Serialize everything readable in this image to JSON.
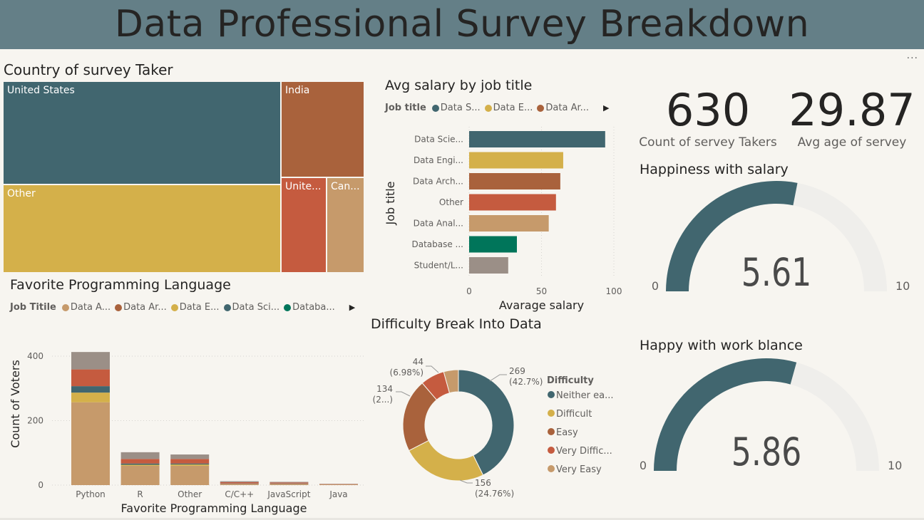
{
  "header": {
    "title": "Data Professional Survey Breakdown",
    "more_icon": "..."
  },
  "treemap": {
    "title": "Country of survey Taker",
    "items": [
      {
        "label": "United States",
        "color": "#41666f"
      },
      {
        "label": "Other",
        "color": "#d4b04a"
      },
      {
        "label": "India",
        "color": "#a9623c"
      },
      {
        "label": "Unite...",
        "color": "#c55b3f"
      },
      {
        "label": "Can...",
        "color": "#c69a6b"
      }
    ]
  },
  "salary_chart": {
    "title": "Avg salary by job title",
    "legend_label": "Job title",
    "legend_items": [
      {
        "label": "Data S...",
        "color": "#41666f"
      },
      {
        "label": "Data E...",
        "color": "#d4b04a"
      },
      {
        "label": "Data Ar...",
        "color": "#a9623c"
      }
    ],
    "xlabel": "Avarage salary",
    "ylabel": "Job title",
    "ticks": [
      "0",
      "50",
      "100"
    ]
  },
  "kpis": [
    {
      "value": "630",
      "label": "Count of servey Takers"
    },
    {
      "value": "29.87",
      "label": "Avg age of servey"
    }
  ],
  "gauges": [
    {
      "title": "Happiness with salary",
      "value": 5.61,
      "value_text": "5.61",
      "min_text": "0",
      "max_text": "10"
    },
    {
      "title": "Happy with work blance",
      "value": 5.86,
      "value_text": "5.86",
      "min_text": "0",
      "max_text": "10"
    }
  ],
  "lang_chart": {
    "title": "Favorite Programming Language",
    "legend_label": "Job Titile",
    "legend_items": [
      {
        "label": "Data A...",
        "color": "#c69a6b"
      },
      {
        "label": "Data Ar...",
        "color": "#a9623c"
      },
      {
        "label": "Data E...",
        "color": "#d4b04a"
      },
      {
        "label": "Data Sci...",
        "color": "#41666f"
      },
      {
        "label": "Databa...",
        "color": "#00755a"
      }
    ],
    "xlabel": "Favorite Programming Language",
    "ylabel": "Count of Voters",
    "ticks": [
      "0",
      "200",
      "400"
    ]
  },
  "donut_chart": {
    "title": "Difficulty Break Into Data",
    "legend_title": "Difficulty",
    "legend_items": [
      {
        "label": "Neither ea...",
        "color": "#41666f"
      },
      {
        "label": "Difficult",
        "color": "#d4b04a"
      },
      {
        "label": "Easy",
        "color": "#a9623c"
      },
      {
        "label": "Very Diffic...",
        "color": "#c55b3f"
      },
      {
        "label": "Very Easy",
        "color": "#c69a6b"
      }
    ],
    "data_labels": [
      {
        "line1": "269",
        "line2": "(42.7%)"
      },
      {
        "line1": "156",
        "line2": "(24.76%)"
      },
      {
        "line1": "134",
        "line2": "(2...)"
      },
      {
        "line1": "44",
        "line2": "(6.98%)"
      }
    ]
  },
  "chart_data": [
    {
      "type": "bar",
      "title": "Avg salary by job title",
      "orientation": "horizontal",
      "xlabel": "Avarage salary",
      "ylabel": "Job title",
      "xlim": [
        0,
        100
      ],
      "categories": [
        "Data Scie...",
        "Data Engi...",
        "Data Arch...",
        "Other",
        "Data Anal...",
        "Database ...",
        "Student/L..."
      ],
      "values": [
        94,
        65,
        63,
        60,
        55,
        33,
        27
      ],
      "colors": [
        "#41666f",
        "#d4b04a",
        "#a9623c",
        "#c55b3f",
        "#c69a6b",
        "#00755a",
        "#9b8f87"
      ]
    },
    {
      "type": "bar",
      "stacked": true,
      "title": "Favorite Programming Language",
      "xlabel": "Favorite Programming Language",
      "ylabel": "Count of Voters",
      "ylim": [
        0,
        420
      ],
      "categories": [
        "Python",
        "R",
        "Other",
        "C/C++",
        "JavaScript",
        "Java"
      ],
      "series": [
        {
          "name": "Data A...",
          "color": "#c69a6b",
          "values": [
            257,
            60,
            60,
            4,
            4,
            2
          ]
        },
        {
          "name": "Data E...",
          "color": "#d4b04a",
          "values": [
            30,
            3,
            4,
            0,
            0,
            0
          ]
        },
        {
          "name": "Data Sci...",
          "color": "#41666f",
          "values": [
            20,
            4,
            3,
            1,
            1,
            0
          ]
        },
        {
          "name": "Data Ar...",
          "color": "#c55b3f",
          "values": [
            52,
            14,
            14,
            4,
            3,
            1
          ]
        },
        {
          "color": "#9b8f87",
          "values": [
            54,
            21,
            14,
            3,
            2,
            1
          ]
        }
      ]
    },
    {
      "type": "pie",
      "donut": true,
      "title": "Difficulty Break Into Data",
      "categories": [
        "Neither ea...",
        "Difficult",
        "Easy",
        "Very Diffic...",
        "Very Easy"
      ],
      "values": [
        269,
        156,
        134,
        44,
        27
      ],
      "colors": [
        "#41666f",
        "#d4b04a",
        "#a9623c",
        "#c55b3f",
        "#c69a6b"
      ]
    },
    {
      "type": "gauge",
      "title": "Happiness with salary",
      "value": 5.61,
      "min": 0,
      "max": 10
    },
    {
      "type": "gauge",
      "title": "Happy with work blance",
      "value": 5.86,
      "min": 0,
      "max": 10
    }
  ]
}
